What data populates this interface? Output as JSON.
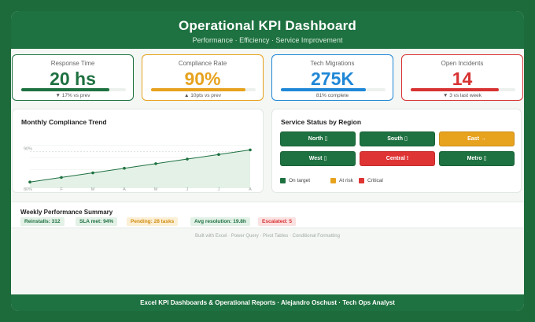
{
  "header": {
    "title": "Operational KPI Dashboard",
    "subtitle": "Performance · Efficiency · Service Improvement"
  },
  "kpis": [
    {
      "label": "Response Time",
      "value": "20 hs",
      "delta": "▼ 17% vs prev",
      "color": "#1e7140",
      "progress": 0.84
    },
    {
      "label": "Compliance Rate",
      "value": "90%",
      "delta": "▲ 10pts vs prev",
      "color": "#e7a21e",
      "progress": 0.9
    },
    {
      "label": "Tech Migrations",
      "value": "275K",
      "delta": "81% complete",
      "color": "#1f87d6",
      "progress": 0.81
    },
    {
      "label": "Open Incidents",
      "value": "14",
      "delta": "▼ 3 vs last week",
      "color": "#d83232",
      "progress": 0.84
    }
  ],
  "trend": {
    "title": "Monthly Compliance Trend",
    "target_label": "90%",
    "start_label": "80%"
  },
  "chart_data": {
    "type": "area",
    "title": "Monthly Compliance Trend",
    "categories": [
      "J",
      "F",
      "M",
      "A",
      "M",
      "J",
      "J",
      "A"
    ],
    "values": [
      80,
      81.5,
      83,
      84.5,
      86,
      87.5,
      89,
      90.5
    ],
    "ylim": [
      78,
      96
    ],
    "reference_line": 90,
    "grid": true
  },
  "regions": {
    "title": "Service Status by Region",
    "items": [
      {
        "label": "North ▯",
        "status": "on_target",
        "color": "#1e7140"
      },
      {
        "label": "South ▯",
        "status": "on_target",
        "color": "#1e7140"
      },
      {
        "label": "East →",
        "status": "at_risk",
        "color": "#e7a21e"
      },
      {
        "label": "West ▯",
        "status": "on_target",
        "color": "#1e7140"
      },
      {
        "label": "Central !",
        "status": "critical",
        "color": "#df3434"
      },
      {
        "label": "Metro ▯",
        "status": "on_target",
        "color": "#1e7140"
      }
    ],
    "legend": [
      {
        "label": "On target",
        "color": "#1e7140"
      },
      {
        "label": "At risk",
        "color": "#e7a21e"
      },
      {
        "label": "Critical",
        "color": "#df3434"
      }
    ]
  },
  "summary": {
    "title": "Weekly Performance Summary",
    "pills": [
      {
        "text": "Reinstalls: 312",
        "bg": "#e3f1e7",
        "fg": "#1e7140"
      },
      {
        "text": "SLA met: 94%",
        "bg": "#e3f1e7",
        "fg": "#1e7140"
      },
      {
        "text": "Pending: 28 tasks",
        "bg": "#fbefd6",
        "fg": "#d28c0e"
      },
      {
        "text": "Avg resolution: 19.8h",
        "bg": "#e3f1e7",
        "fg": "#1e7140"
      },
      {
        "text": "Escalated: 5",
        "bg": "#fbe1e1",
        "fg": "#d83232"
      }
    ]
  },
  "footnote": "Built with Excel · Power Query · Pivot Tables · Conditional Formatting",
  "footer": "Excel KPI Dashboards & Operational Reports · Alejandro Oschust · Tech Ops Analyst"
}
